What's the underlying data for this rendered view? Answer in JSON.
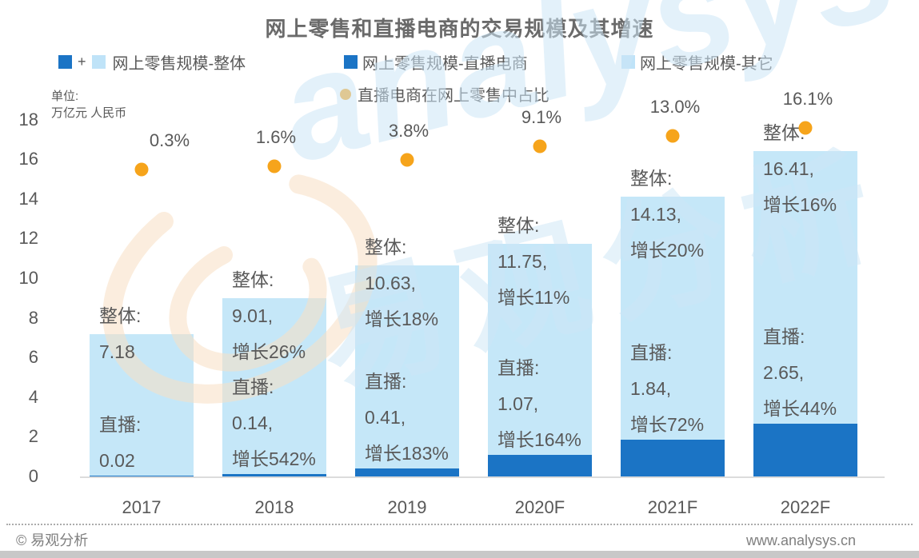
{
  "title": "网上零售和直播电商的交易规模及其增速",
  "legend": {
    "plus": "+",
    "combined_label": "网上零售规模-整体",
    "live_label": "网上零售规模-直播电商",
    "other_label": "网上零售规模-其它",
    "ratio_label": "直播电商在网上零售中占比"
  },
  "unit": {
    "line1": "单位:",
    "line2": "万亿元 人民币"
  },
  "colors": {
    "live_blue": "#1b74c5",
    "other_blue": "#c5e7f8",
    "legend_light_blue": "#bfe3f8",
    "ratio_orange": "#f6a41b",
    "text_gray": "#595959"
  },
  "footer": {
    "left": "© 易观分析",
    "right": "www.analysys.cn"
  },
  "watermarks": {
    "en": "analysys",
    "zh": "易观分析"
  },
  "chart_data": {
    "type": "bar",
    "stacked": true,
    "title": "网上零售和直播电商的交易规模及其增速",
    "ylabel": "单位: 万亿元 人民币",
    "ylim": [
      0,
      18
    ],
    "ytick_step": 2,
    "grid": false,
    "legend_position": "top",
    "categories": [
      "2017",
      "2018",
      "2019",
      "2020F",
      "2021F",
      "2022F"
    ],
    "series": [
      {
        "name": "网上零售规模-直播电商",
        "values": [
          0.02,
          0.14,
          0.41,
          1.07,
          1.84,
          2.65
        ],
        "color": "#1b74c5"
      },
      {
        "name": "网上零售规模-其它",
        "values": [
          7.16,
          8.87,
          10.22,
          10.68,
          12.29,
          13.76
        ],
        "color": "#c5e7f8"
      }
    ],
    "totals": [
      7.18,
      9.01,
      10.63,
      11.75,
      14.13,
      16.41
    ],
    "ratio_series": {
      "name": "直播电商在网上零售中占比",
      "values_pct": [
        0.3,
        1.6,
        3.8,
        9.1,
        13.0,
        16.1
      ],
      "labels": [
        "0.3%",
        "1.6%",
        "3.8%",
        "9.1%",
        "13.0%",
        "16.1%"
      ],
      "color": "#f6a41b"
    },
    "annotations": [
      {
        "total_lines": [
          "整体:",
          "7.18"
        ],
        "live_lines": [
          "直播:",
          "0.02"
        ]
      },
      {
        "total_lines": [
          "整体:",
          "9.01,",
          "增长26%"
        ],
        "live_lines": [
          "直播:",
          "0.14,",
          "增长542%"
        ]
      },
      {
        "total_lines": [
          "整体:",
          "10.63,",
          "增长18%"
        ],
        "live_lines": [
          "直播:",
          "0.41,",
          "增长183%"
        ]
      },
      {
        "total_lines": [
          "整体:",
          "11.75,",
          "增长11%"
        ],
        "live_lines": [
          "直播:",
          "1.07,",
          "增长164%"
        ]
      },
      {
        "total_lines": [
          "整体:",
          "14.13,",
          "增长20%"
        ],
        "live_lines": [
          "直播:",
          "1.84,",
          "增长72%"
        ]
      },
      {
        "total_lines": [
          "整体:",
          "16.41,",
          "增长16%"
        ],
        "live_lines": [
          "直播:",
          "2.65,",
          "增长44%"
        ]
      }
    ]
  }
}
